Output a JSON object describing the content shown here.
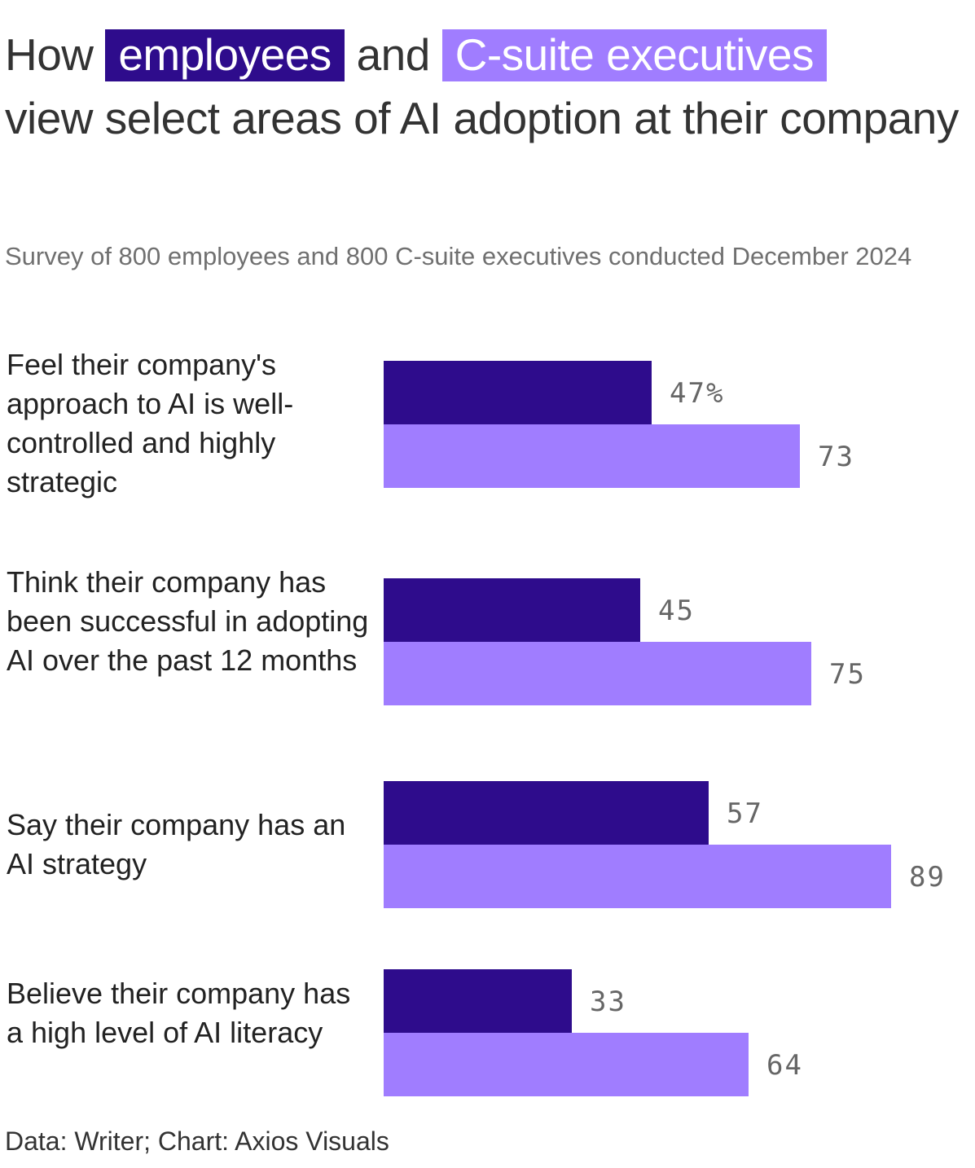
{
  "title": {
    "prefix": "How",
    "employees": "employees",
    "and": "and",
    "executives": "C-suite executives",
    "rest": "view select areas of AI adoption at their company"
  },
  "subtitle": "Survey of 800 employees and 800 C-suite executives conducted December 2024",
  "source": "Data: Writer; Chart: Axios Visuals",
  "colors": {
    "employees": "#2e0c8c",
    "executives": "#a07dff"
  },
  "chart_data": {
    "type": "bar",
    "orientation": "horizontal",
    "categories": [
      "Feel their company's approach to AI is well-controlled and highly strategic",
      "Think their company has been successful in adopting AI over the past 12 months",
      "Say their company has an AI strategy",
      "Believe their company has a high level of AI literacy"
    ],
    "series": [
      {
        "name": "employees",
        "values": [
          47,
          45,
          57,
          33
        ]
      },
      {
        "name": "C-suite executives",
        "values": [
          73,
          75,
          89,
          64
        ]
      }
    ],
    "value_labels": [
      [
        "47%",
        "73"
      ],
      [
        "45",
        "75"
      ],
      [
        "57",
        "89"
      ],
      [
        "33",
        "64"
      ]
    ],
    "unit": "%",
    "xlim": [
      0,
      100
    ],
    "grid": false,
    "legend": "title"
  }
}
